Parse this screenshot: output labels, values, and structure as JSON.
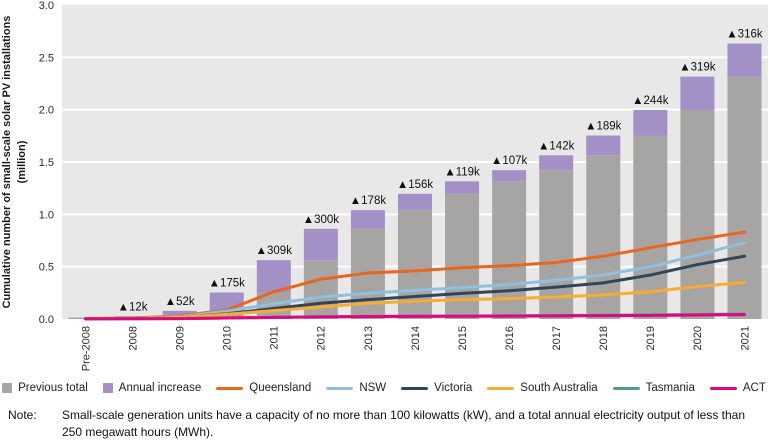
{
  "figure": {
    "note_label": "Note:",
    "note_text": "Small-scale generation units have a capacity of no more than 100 kilowatts (kW), and a total annual electricity output of less than 250 megawatt hours (MWh)."
  },
  "chart_data": {
    "type": "bar",
    "subtype": "stacked-bars-with-overlaid-lines",
    "title": "",
    "xlabel": "",
    "ylabel": "Cumulative number of small-scale solar PV installations (million)",
    "ylim": [
      0,
      3.0
    ],
    "ytick_labels": [
      "0.0",
      "0.5",
      "1.0",
      "1.5",
      "2.0",
      "2.5",
      "3.0"
    ],
    "grid": "horizontal white gridlines on light grey panel",
    "panel_color": "#e9e8e8",
    "grid_color": "#ffffff",
    "annotation_color": "#111111",
    "legend_position": "bottom",
    "categories": [
      "Pre-2008",
      "2008",
      "2009",
      "2010",
      "2011",
      "2012",
      "2013",
      "2014",
      "2015",
      "2016",
      "2017",
      "2018",
      "2019",
      "2020",
      "2021"
    ],
    "bar_series": [
      {
        "name": "Previous total",
        "color": "#a7a4a4",
        "values": [
          0.014,
          0.014,
          0.026,
          0.078,
          0.253,
          0.562,
          0.862,
          1.04,
          1.196,
          1.315,
          1.422,
          1.564,
          1.753,
          1.997,
          2.316
        ]
      },
      {
        "name": "Annual increase",
        "color": "#a290c6",
        "values": [
          0,
          0.012,
          0.052,
          0.175,
          0.309,
          0.3,
          0.178,
          0.156,
          0.119,
          0.107,
          0.142,
          0.189,
          0.244,
          0.319,
          0.316
        ]
      }
    ],
    "annotations": [
      "",
      "▲12k",
      "▲52k",
      "▲175k",
      "▲309k",
      "▲300k",
      "▲178k",
      "▲156k",
      "▲119k",
      "▲107k",
      "▲142k",
      "▲189k",
      "▲244k",
      "▲319k",
      "▲316k"
    ],
    "line_series": [
      {
        "name": "Queensland",
        "color": "#e8671d",
        "values": [
          0.005,
          0.01,
          0.03,
          0.085,
          0.26,
          0.38,
          0.44,
          0.46,
          0.49,
          0.51,
          0.54,
          0.6,
          0.68,
          0.76,
          0.83
        ]
      },
      {
        "name": "NSW",
        "color": "#8fc1de",
        "values": [
          0.004,
          0.008,
          0.022,
          0.075,
          0.145,
          0.21,
          0.245,
          0.275,
          0.3,
          0.33,
          0.37,
          0.42,
          0.5,
          0.61,
          0.73
        ]
      },
      {
        "name": "Victoria",
        "color": "#31455a",
        "values": [
          0.003,
          0.006,
          0.015,
          0.05,
          0.1,
          0.15,
          0.185,
          0.215,
          0.245,
          0.27,
          0.305,
          0.345,
          0.42,
          0.52,
          0.6
        ]
      },
      {
        "name": "South Australia",
        "color": "#f9ac33",
        "values": [
          0.002,
          0.005,
          0.015,
          0.045,
          0.08,
          0.115,
          0.15,
          0.17,
          0.185,
          0.195,
          0.21,
          0.23,
          0.26,
          0.31,
          0.35
        ]
      },
      {
        "name": "Tasmania",
        "color": "#4d9e8d",
        "values": [
          0.001,
          0.002,
          0.004,
          0.009,
          0.015,
          0.021,
          0.025,
          0.027,
          0.029,
          0.031,
          0.033,
          0.036,
          0.039,
          0.043,
          0.048
        ]
      },
      {
        "name": "ACT",
        "color": "#e0077e",
        "values": [
          0.001,
          0.002,
          0.004,
          0.009,
          0.015,
          0.02,
          0.023,
          0.025,
          0.026,
          0.028,
          0.03,
          0.032,
          0.034,
          0.038,
          0.042
        ]
      }
    ]
  }
}
